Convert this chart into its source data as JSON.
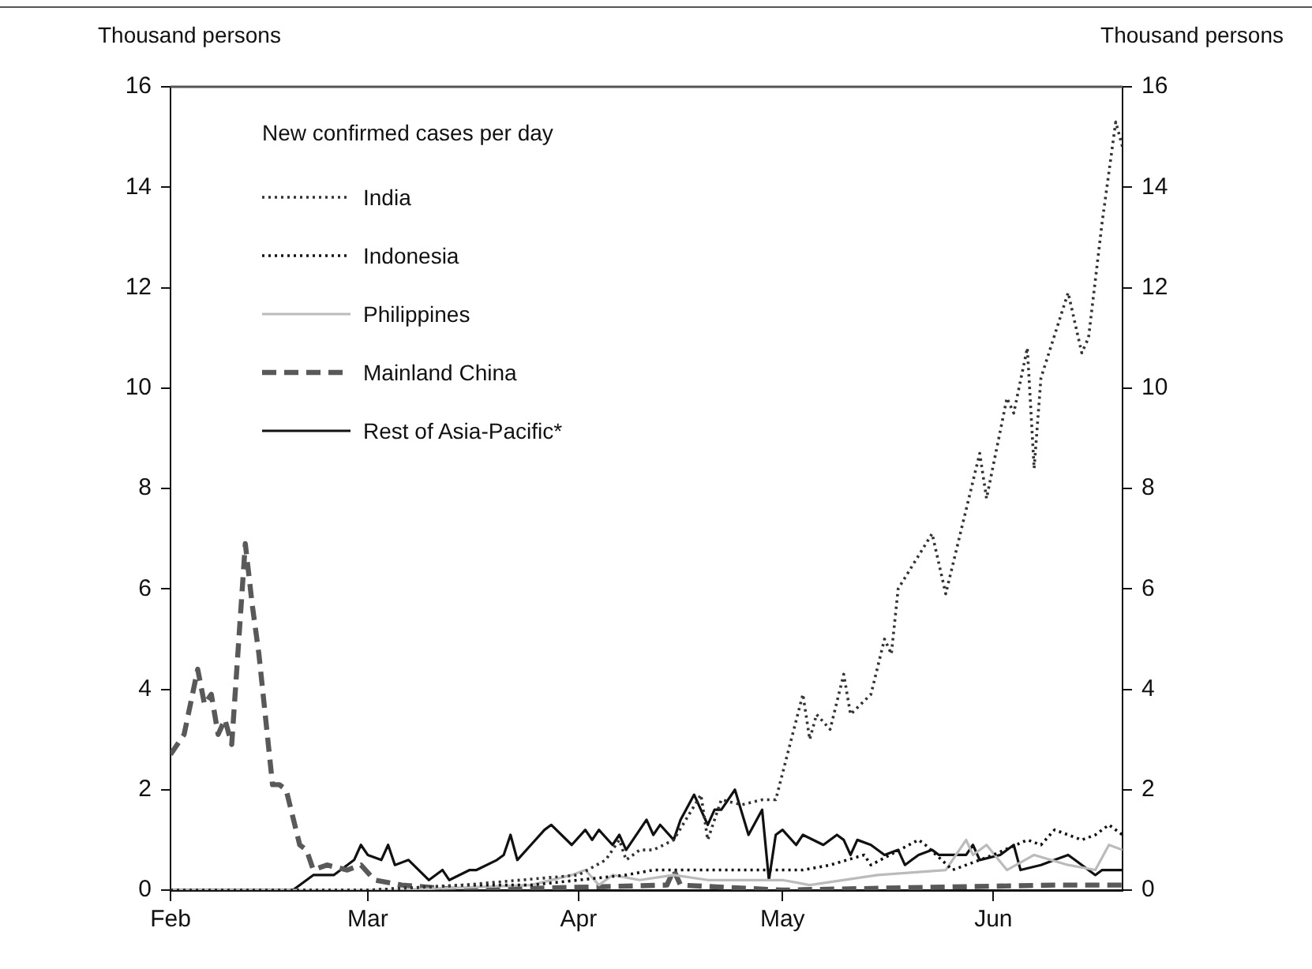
{
  "chart_data": {
    "type": "line",
    "ylabel": "Thousand persons",
    "y2label": "Thousand persons",
    "legend": "top left",
    "legend_title": "New confirmed cases per day",
    "xlim": [
      "--02-01",
      "--06-20"
    ],
    "xticks": [
      {
        "value": "--02-01",
        "label": "Feb"
      },
      {
        "value": "--03-01",
        "label": "Mar"
      },
      {
        "value": "--04-01",
        "label": "Apr"
      },
      {
        "value": "--05-01",
        "label": "May"
      },
      {
        "value": "--06-01",
        "label": "Jun"
      }
    ],
    "ylim": [
      0,
      16
    ],
    "yticks": [
      0,
      2,
      4,
      6,
      8,
      10,
      12,
      14,
      16
    ],
    "y2lim": [
      0,
      16
    ],
    "y2ticks": [
      0,
      2,
      4,
      6,
      8,
      10,
      12,
      14,
      16
    ],
    "grid": false,
    "series": [
      {
        "name": "India",
        "color": "#333333",
        "line_style": "dotted",
        "x": [
          "--02-01",
          "--03-01",
          "--03-15",
          "--04-01",
          "--04-05",
          "--04-07",
          "--04-08",
          "--04-10",
          "--04-12",
          "--04-15",
          "--04-19",
          "--04-20",
          "--04-22",
          "--04-25",
          "--04-28",
          "--04-30",
          "--05-04",
          "--05-05",
          "--05-06",
          "--05-08",
          "--05-10",
          "--05-11",
          "--05-14",
          "--05-16",
          "--05-17",
          "--05-18",
          "--05-23",
          "--05-25",
          "--05-30",
          "--05-31",
          "--06-03",
          "--06-04",
          "--06-06",
          "--06-07",
          "--06-08",
          "--06-12",
          "--06-14",
          "--06-15",
          "--06-17",
          "--06-19",
          "--06-20"
        ],
        "values": [
          0,
          0,
          0.1,
          0.3,
          0.6,
          1.0,
          0.6,
          0.8,
          0.8,
          1.0,
          1.9,
          1.0,
          1.8,
          1.7,
          1.8,
          1.8,
          3.9,
          3.0,
          3.5,
          3.2,
          4.3,
          3.5,
          3.9,
          5.0,
          4.7,
          6.0,
          7.1,
          5.9,
          8.7,
          7.8,
          9.8,
          9.5,
          10.8,
          8.4,
          10.2,
          11.9,
          10.7,
          11.0,
          13.3,
          15.3,
          14.8
        ]
      },
      {
        "name": "Indonesia",
        "color": "#111111",
        "line_style": "dotted",
        "x": [
          "--02-01",
          "--03-01",
          "--03-15",
          "--03-25",
          "--04-01",
          "--04-08",
          "--04-12",
          "--04-20",
          "--04-25",
          "--05-01",
          "--05-04",
          "--05-08",
          "--05-13",
          "--05-14",
          "--05-21",
          "--05-22",
          "--05-26",
          "--06-01",
          "--06-06",
          "--06-08",
          "--06-10",
          "--06-12",
          "--06-14",
          "--06-16",
          "--06-18",
          "--06-20"
        ],
        "values": [
          0,
          0,
          0.1,
          0.1,
          0.2,
          0.3,
          0.4,
          0.4,
          0.4,
          0.4,
          0.4,
          0.5,
          0.7,
          0.5,
          1.0,
          0.9,
          0.4,
          0.7,
          1.0,
          0.9,
          1.2,
          1.1,
          1.0,
          1.1,
          1.3,
          1.1
        ]
      },
      {
        "name": "Philippines",
        "color": "#bbbbbb",
        "line_style": "solid",
        "x": [
          "--02-01",
          "--03-05",
          "--03-25",
          "--03-31",
          "--04-02",
          "--04-04",
          "--04-06",
          "--04-10",
          "--04-15",
          "--04-20",
          "--05-01",
          "--05-05",
          "--05-15",
          "--05-25",
          "--05-28",
          "--05-29",
          "--05-31",
          "--06-03",
          "--06-07",
          "--06-12",
          "--06-16",
          "--06-18",
          "--06-20"
        ],
        "values": [
          0,
          0,
          0.1,
          0.3,
          0.4,
          0.1,
          0.3,
          0.2,
          0.3,
          0.2,
          0.2,
          0.1,
          0.3,
          0.4,
          1.0,
          0.7,
          0.9,
          0.4,
          0.7,
          0.5,
          0.4,
          0.9,
          0.8
        ]
      },
      {
        "name": "Mainland China",
        "color": "#595959",
        "line_style": "dashed",
        "x": [
          "--02-01",
          "--02-03",
          "--02-05",
          "--02-06",
          "--02-07",
          "--02-08",
          "--02-09",
          "--02-10",
          "--02-12",
          "--02-13",
          "--02-14",
          "--02-16",
          "--02-17",
          "--02-18",
          "--02-20",
          "--02-21",
          "--02-22",
          "--02-24",
          "--02-27",
          "--02-29",
          "--03-02",
          "--03-06",
          "--03-15",
          "--04-14",
          "--04-15",
          "--04-16",
          "--05-01",
          "--06-10",
          "--06-20"
        ],
        "values": [
          2.7,
          3.1,
          4.4,
          3.7,
          3.9,
          3.1,
          3.4,
          2.9,
          6.9,
          5.7,
          4.7,
          2.1,
          2.1,
          2.0,
          0.9,
          0.8,
          0.4,
          0.5,
          0.4,
          0.5,
          0.2,
          0.1,
          0,
          0.1,
          0.4,
          0.1,
          0,
          0.1,
          0.1
        ]
      },
      {
        "name": "Rest of Asia-Pacific*",
        "color": "#111111",
        "line_style": "solid",
        "x": [
          "--02-01",
          "--02-19",
          "--02-22",
          "--02-25",
          "--02-27",
          "--02-28",
          "--02-29",
          "--03-01",
          "--03-03",
          "--03-04",
          "--03-05",
          "--03-07",
          "--03-10",
          "--03-12",
          "--03-13",
          "--03-16",
          "--03-17",
          "--03-20",
          "--03-21",
          "--03-22",
          "--03-23",
          "--03-25",
          "--03-27",
          "--03-28",
          "--03-31",
          "--04-02",
          "--04-03",
          "--04-04",
          "--04-06",
          "--04-07",
          "--04-08",
          "--04-09",
          "--04-11",
          "--04-12",
          "--04-13",
          "--04-15",
          "--04-16",
          "--04-18",
          "--04-20",
          "--04-21",
          "--04-22",
          "--04-24",
          "--04-26",
          "--04-28",
          "--04-29",
          "--04-30",
          "--05-01",
          "--05-03",
          "--05-04",
          "--05-07",
          "--05-09",
          "--05-10",
          "--05-11",
          "--05-12",
          "--05-14",
          "--05-16",
          "--05-18",
          "--05-19",
          "--05-20",
          "--05-21",
          "--05-23",
          "--05-24",
          "--05-27",
          "--05-28",
          "--05-29",
          "--05-30",
          "--06-02",
          "--06-04",
          "--06-05",
          "--06-08",
          "--06-10",
          "--06-12",
          "--06-13",
          "--06-16",
          "--06-17",
          "--06-20"
        ],
        "values": [
          0,
          0,
          0.3,
          0.3,
          0.5,
          0.6,
          0.9,
          0.7,
          0.6,
          0.9,
          0.5,
          0.6,
          0.2,
          0.4,
          0.2,
          0.4,
          0.4,
          0.6,
          0.7,
          1.1,
          0.6,
          0.9,
          1.2,
          1.3,
          0.9,
          1.2,
          1.0,
          1.2,
          0.9,
          1.1,
          0.8,
          1.0,
          1.4,
          1.1,
          1.3,
          1.0,
          1.4,
          1.9,
          1.3,
          1.6,
          1.6,
          2.0,
          1.1,
          1.6,
          0.2,
          1.1,
          1.2,
          0.9,
          1.1,
          0.9,
          1.1,
          1.0,
          0.7,
          1.0,
          0.9,
          0.7,
          0.8,
          0.5,
          0.6,
          0.7,
          0.8,
          0.7,
          0.7,
          0.7,
          0.9,
          0.6,
          0.7,
          0.9,
          0.4,
          0.5,
          0.6,
          0.7,
          0.6,
          0.3,
          0.4,
          0.4
        ]
      }
    ]
  }
}
